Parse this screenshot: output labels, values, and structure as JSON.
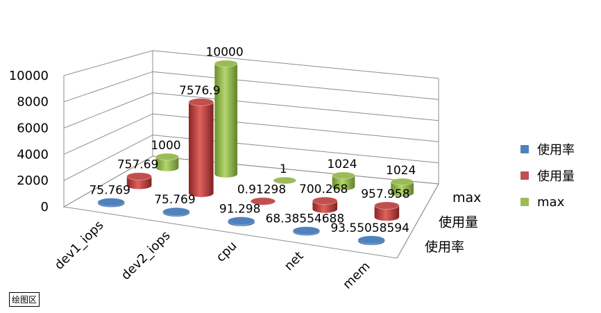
{
  "plot_area_tag": "绘图区",
  "colors": {
    "使用率": "#4f81bd",
    "使用量": "#c0504d",
    "max": "#9bbb59"
  },
  "chart_data": {
    "type": "bar",
    "subtype": "3d-cylinder",
    "categories": [
      "dev1_iops",
      "dev2_iops",
      "cpu",
      "net",
      "mem"
    ],
    "series": [
      {
        "name": "使用率",
        "values": [
          75.769,
          75.769,
          91.298,
          68.38554688,
          93.55058594
        ],
        "labels": [
          "75.769",
          "75.769",
          "91.298",
          "68.38554688",
          "93.55058594"
        ]
      },
      {
        "name": "使用量",
        "values": [
          757.69,
          7576.9,
          0.91298,
          700.268,
          957.958
        ],
        "labels": [
          "757.69",
          "7576.9",
          "0.91298",
          "700.268",
          "957.958"
        ]
      },
      {
        "name": "max",
        "values": [
          1000,
          10000,
          1,
          1024,
          1024
        ],
        "labels": [
          "1000",
          "10000",
          "1",
          "1024",
          "1024"
        ]
      }
    ],
    "y_ticks": [
      "0",
      "2000",
      "4000",
      "6000",
      "8000",
      "10000"
    ],
    "ylim": [
      0,
      10000
    ],
    "depth_axis_labels": [
      "max",
      "使用量",
      "使用率"
    ],
    "legend": [
      "使用率",
      "使用量",
      "max"
    ],
    "legend_position": "right",
    "grid": true
  }
}
